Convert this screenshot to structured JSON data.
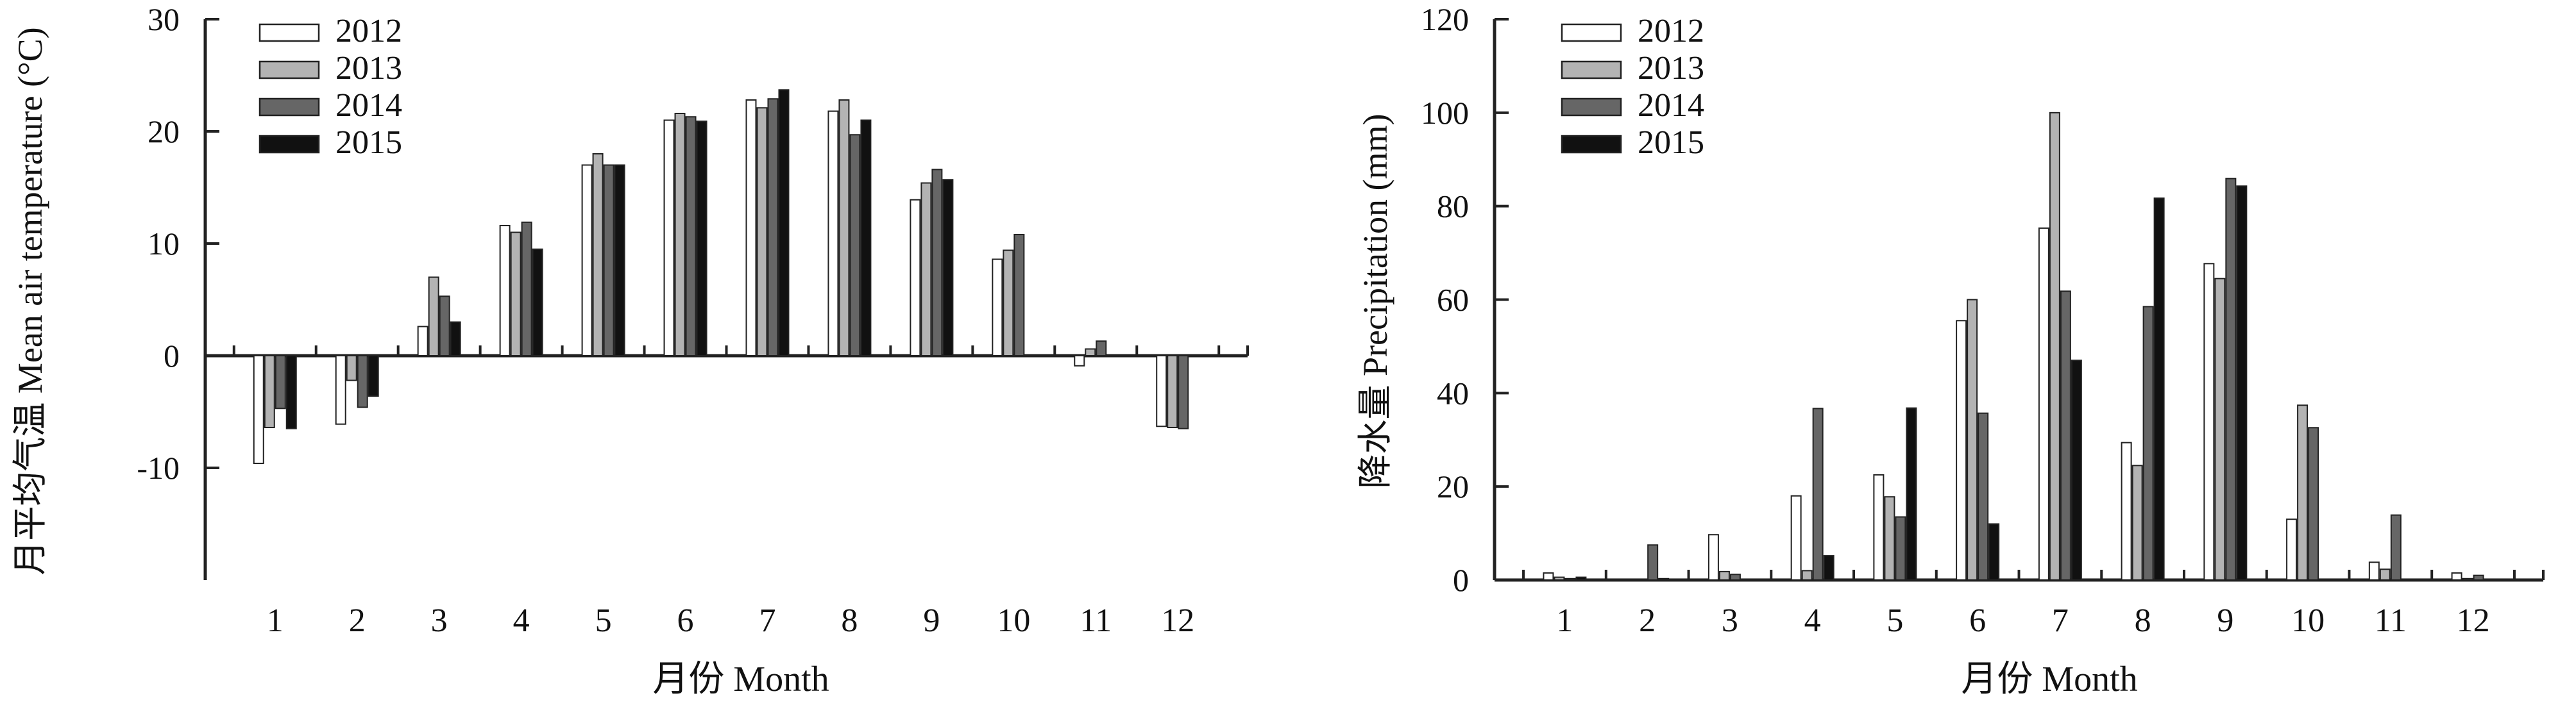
{
  "legend_years": [
    "2012",
    "2013",
    "2014",
    "2015"
  ],
  "colors": {
    "2012": "#ffffff",
    "2013": "#b3b3b3",
    "2014": "#666666",
    "2015": "#111111",
    "stroke": "#222222"
  },
  "chart_data": [
    {
      "type": "bar",
      "ylabel": "月平均气温 Mean air temperature (°C)",
      "xlabel": "月份 Month",
      "categories": [
        "1",
        "2",
        "3",
        "4",
        "5",
        "6",
        "7",
        "8",
        "9",
        "10",
        "11",
        "12"
      ],
      "ylim": [
        -20,
        30
      ],
      "yticks": [
        "30",
        "20",
        "10",
        "0",
        "-10"
      ],
      "ytick_values": [
        30,
        20,
        10,
        0,
        -10
      ],
      "legend_position": "top-left",
      "series": [
        {
          "name": "2012",
          "values": [
            -9.6,
            -6.1,
            2.6,
            11.6,
            17.0,
            21.0,
            22.8,
            21.8,
            13.9,
            8.6,
            -0.9,
            -6.3
          ]
        },
        {
          "name": "2013",
          "values": [
            -6.4,
            -2.2,
            7.0,
            11.0,
            18.0,
            21.6,
            22.1,
            22.8,
            15.4,
            9.4,
            0.6,
            -6.4
          ]
        },
        {
          "name": "2014",
          "values": [
            -4.7,
            -4.6,
            5.3,
            11.9,
            17.0,
            21.3,
            22.9,
            19.7,
            16.6,
            10.8,
            1.3,
            -6.5
          ]
        },
        {
          "name": "2015",
          "values": [
            -6.5,
            -3.6,
            3.0,
            9.5,
            17.0,
            20.9,
            23.7,
            21.0,
            15.7,
            null,
            null,
            null
          ]
        }
      ]
    },
    {
      "type": "bar",
      "ylabel": "降水量 Precipitation (mm)",
      "xlabel": "月份 Month",
      "categories": [
        "1",
        "2",
        "3",
        "4",
        "5",
        "6",
        "7",
        "8",
        "9",
        "10",
        "11",
        "12"
      ],
      "ylim": [
        0,
        120
      ],
      "yticks": [
        "120",
        "100",
        "80",
        "60",
        "40",
        "20",
        "0"
      ],
      "ytick_values": [
        120,
        100,
        80,
        60,
        40,
        20,
        0
      ],
      "legend_position": "top-left",
      "series": [
        {
          "name": "2012",
          "values": [
            1.5,
            0.0,
            9.7,
            18.0,
            22.5,
            55.5,
            75.3,
            29.4,
            67.7,
            13.0,
            3.8,
            1.5
          ]
        },
        {
          "name": "2013",
          "values": [
            0.6,
            0.0,
            1.8,
            2.0,
            17.8,
            60.0,
            100.0,
            24.5,
            64.5,
            37.4,
            2.3,
            0.3
          ]
        },
        {
          "name": "2014",
          "values": [
            0.3,
            7.5,
            1.2,
            36.7,
            13.5,
            35.7,
            61.8,
            58.5,
            85.9,
            32.6,
            13.9,
            1.0
          ]
        },
        {
          "name": "2015",
          "values": [
            0.6,
            0.3,
            0.0,
            5.2,
            36.8,
            12.0,
            47.0,
            81.7,
            84.3,
            null,
            null,
            null
          ]
        }
      ]
    }
  ]
}
